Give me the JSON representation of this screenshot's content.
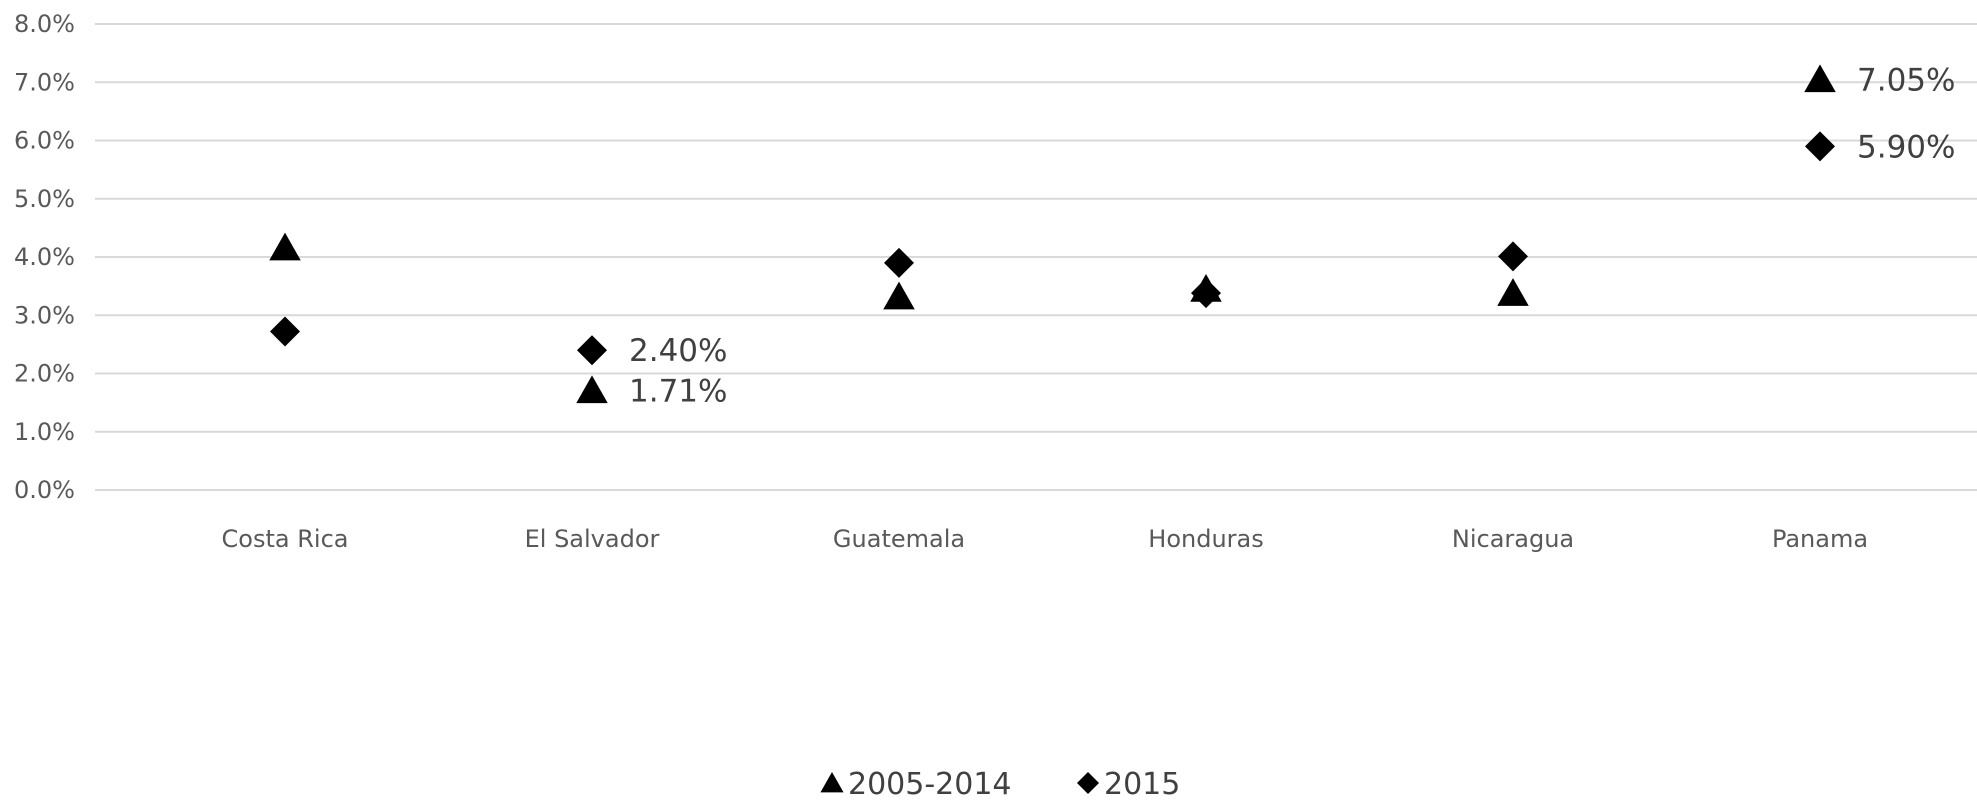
{
  "chart_data": {
    "type": "scatter",
    "categories": [
      "Costa Rica",
      "El Salvador",
      "Guatemala",
      "Honduras",
      "Nicaragua",
      "Panama"
    ],
    "series": [
      {
        "name": "2005-2014",
        "marker": "triangle",
        "color": "#000000",
        "values": [
          4.16,
          1.71,
          3.32,
          3.45,
          3.38,
          7.05
        ],
        "labels": [
          "",
          "1.71%",
          "",
          "",
          "",
          "7.05%"
        ]
      },
      {
        "name": "2015",
        "marker": "diamond",
        "color": "#000000",
        "values": [
          2.72,
          2.4,
          3.9,
          3.38,
          4.01,
          5.9
        ],
        "labels": [
          "",
          "2.40%",
          "",
          "",
          "",
          "5.90%"
        ]
      }
    ],
    "y_ticks": [
      "0.0%",
      "1.0%",
      "2.0%",
      "3.0%",
      "4.0%",
      "5.0%",
      "6.0%",
      "7.0%",
      "8.0%"
    ],
    "ylim": [
      0,
      8
    ],
    "grid": true,
    "legend_position": "bottom",
    "title": "",
    "xlabel": "",
    "ylabel": ""
  }
}
